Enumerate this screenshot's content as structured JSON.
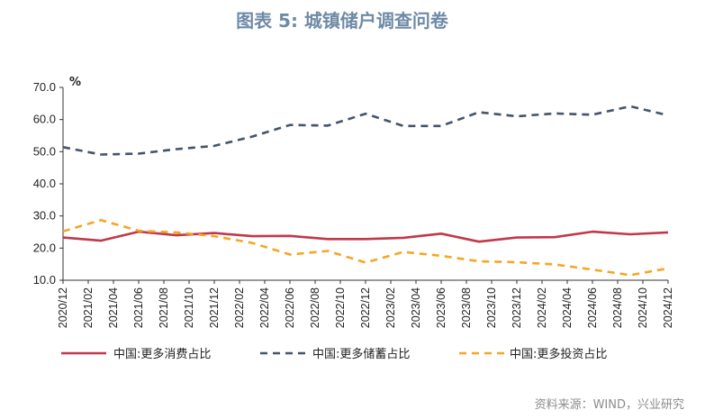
{
  "chart_data": {
    "type": "line",
    "title": "图表 5:   城镇储户调查问卷",
    "unit": "%",
    "source": "资料来源：WIND，兴业研究",
    "ylim": [
      10,
      70
    ],
    "yticks": [
      "70.0",
      "60.0",
      "50.0",
      "40.0",
      "30.0",
      "20.0",
      "10.0"
    ],
    "categories": [
      "2020/12",
      "2021/02",
      "2021/04",
      "2021/06",
      "2021/08",
      "2021/10",
      "2021/12",
      "2022/02",
      "2022/04",
      "2022/06",
      "2022/08",
      "2022/10",
      "2022/12",
      "2023/02",
      "2023/04",
      "2023/06",
      "2023/08",
      "2023/10",
      "2023/12",
      "2024/02",
      "2024/04",
      "2024/06",
      "2024/08",
      "2024/10",
      "2024/12"
    ],
    "x": [
      "2020/12",
      "2021/03",
      "2021/06",
      "2021/09",
      "2021/12",
      "2022/03",
      "2022/06",
      "2022/09",
      "2022/12",
      "2023/03",
      "2023/06",
      "2023/09",
      "2023/12",
      "2024/03",
      "2024/06",
      "2024/09",
      "2024/12"
    ],
    "series": [
      {
        "name": "中国:更多消费占比",
        "color": "#c0394a",
        "dash": "solid",
        "values": [
          23.3,
          22.3,
          25.1,
          24.0,
          24.7,
          23.7,
          23.8,
          22.8,
          22.8,
          23.2,
          24.5,
          22.0,
          23.3,
          23.4,
          25.1,
          24.3,
          24.9
        ]
      },
      {
        "name": "中国:更多储蓄占比",
        "color": "#44546a",
        "dash": "dashed",
        "values": [
          51.4,
          49.1,
          49.4,
          50.8,
          51.8,
          54.7,
          58.3,
          58.1,
          61.8,
          58.0,
          58.0,
          62.3,
          61.0,
          61.9,
          61.5,
          64.1,
          61.3
        ]
      },
      {
        "name": "中国:更多投资占比",
        "color": "#f5a623",
        "dash": "dashed",
        "values": [
          25.2,
          28.7,
          25.4,
          24.9,
          23.7,
          21.6,
          18.0,
          19.1,
          15.5,
          18.8,
          17.6,
          15.9,
          15.6,
          14.9,
          13.3,
          11.6,
          13.7
        ]
      }
    ],
    "grid": false,
    "legend": "bottom"
  }
}
